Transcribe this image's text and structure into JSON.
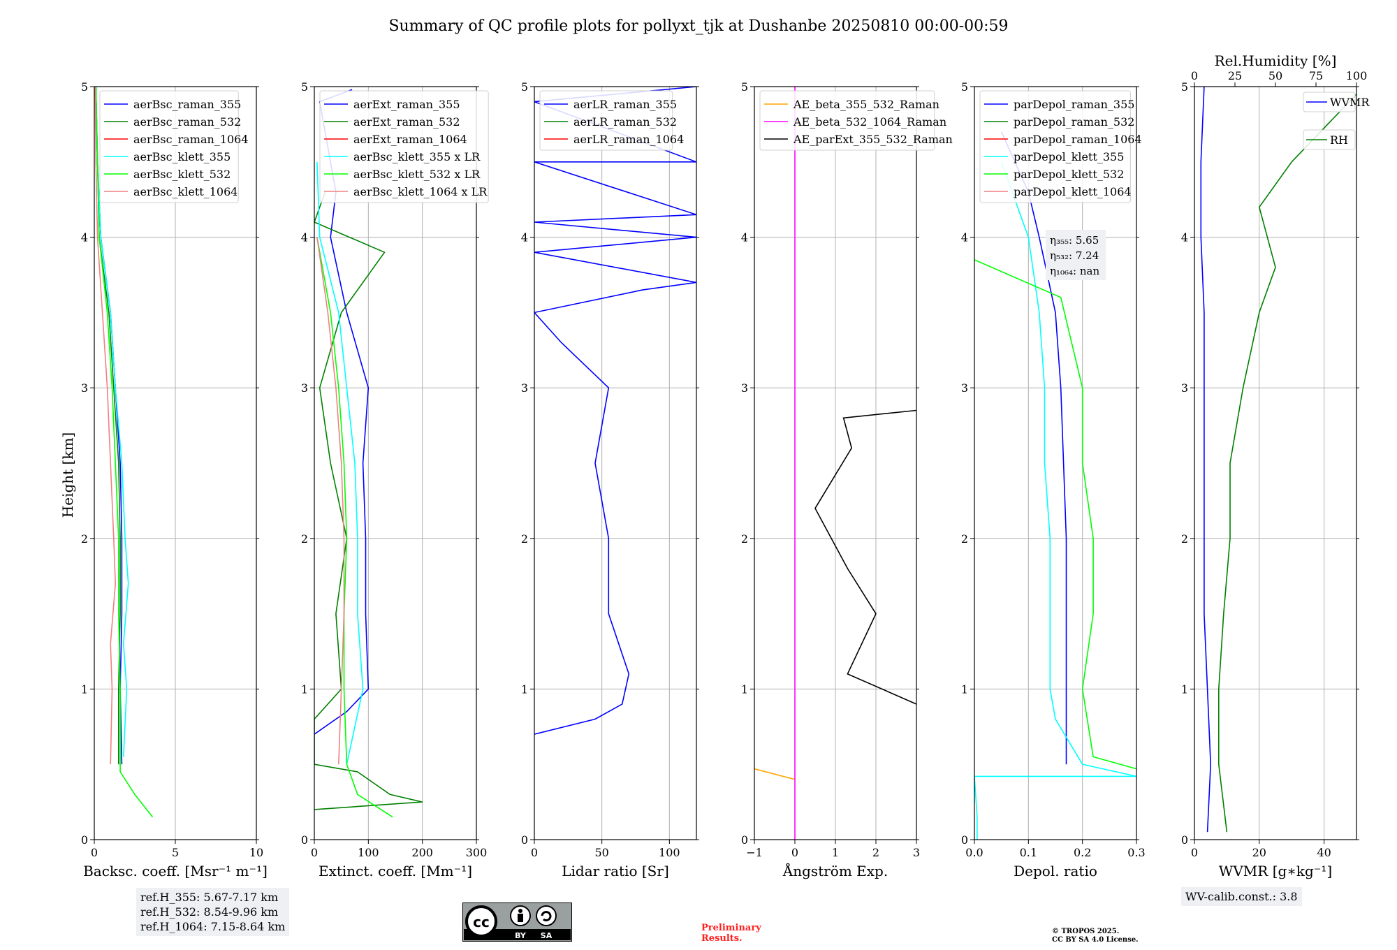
{
  "title": "Summary of QC profile plots for pollyxt_tjk at Dushanbe 20250810 00:00-00:59",
  "ylabel": "Height [km]",
  "colors": {
    "blue": "#0000ff",
    "green": "#008000",
    "red": "#ff0000",
    "cyan": "#00ffff",
    "lime": "#00ff00",
    "salmon": "#f08080",
    "orange": "#ffa500",
    "magenta": "#ff00ff",
    "black": "#000000"
  },
  "chart_data": [
    {
      "type": "line",
      "xlabel": "Backsc. coeff. [Msr$^{-1}$ m$^{-1}$]",
      "xlabel_text": "Backsc. coeff. [Msr⁻¹ m⁻¹]",
      "xlim": [
        0,
        10
      ],
      "ylim": [
        0,
        5
      ],
      "xticks": [
        0,
        5,
        10
      ],
      "yticks": [
        0,
        1,
        2,
        3,
        4,
        5
      ],
      "grid": true,
      "legend": "top-left",
      "series": [
        {
          "name": "aerBsc_raman_355",
          "color": "#0000ff",
          "points": [
            [
              1.7,
              0.5
            ],
            [
              1.6,
              1.0
            ],
            [
              1.7,
              1.5
            ],
            [
              1.7,
              2.0
            ],
            [
              1.6,
              2.5
            ],
            [
              1.3,
              3.0
            ],
            [
              1.0,
              3.5
            ],
            [
              0.4,
              4.0
            ],
            [
              0.2,
              4.5
            ],
            [
              0.1,
              5.0
            ]
          ]
        },
        {
          "name": "aerBsc_raman_532",
          "color": "#008000",
          "points": [
            [
              1.5,
              0.5
            ],
            [
              1.5,
              1.0
            ],
            [
              1.6,
              1.5
            ],
            [
              1.6,
              2.0
            ],
            [
              1.5,
              2.5
            ],
            [
              1.2,
              3.0
            ],
            [
              0.9,
              3.5
            ],
            [
              0.3,
              4.0
            ],
            [
              0.2,
              4.5
            ],
            [
              0.1,
              5.0
            ]
          ]
        },
        {
          "name": "aerBsc_raman_1064",
          "color": "#ff0000",
          "points": []
        },
        {
          "name": "aerBsc_klett_355",
          "color": "#00ffff",
          "points": [
            [
              1.8,
              0.55
            ],
            [
              2.0,
              1.0
            ],
            [
              1.8,
              1.3
            ],
            [
              2.1,
              1.7
            ],
            [
              1.9,
              2.0
            ],
            [
              1.7,
              2.5
            ],
            [
              1.3,
              3.0
            ],
            [
              1.0,
              3.5
            ],
            [
              0.4,
              4.0
            ],
            [
              0.2,
              4.5
            ],
            [
              0.1,
              5.0
            ]
          ]
        },
        {
          "name": "aerBsc_klett_532",
          "color": "#00ff00",
          "points": [
            [
              3.6,
              0.15
            ],
            [
              2.5,
              0.3
            ],
            [
              1.6,
              0.45
            ],
            [
              1.6,
              1.0
            ],
            [
              1.5,
              1.5
            ],
            [
              1.5,
              2.0
            ],
            [
              1.3,
              2.5
            ],
            [
              1.1,
              3.0
            ],
            [
              0.8,
              3.5
            ],
            [
              0.3,
              4.0
            ],
            [
              0.2,
              4.5
            ],
            [
              0.1,
              5.0
            ]
          ]
        },
        {
          "name": "aerBsc_klett_1064",
          "color": "#f08080",
          "points": [
            [
              1.0,
              0.5
            ],
            [
              1.1,
              1.0
            ],
            [
              1.0,
              1.3
            ],
            [
              1.3,
              1.7
            ],
            [
              1.2,
              2.0
            ],
            [
              1.0,
              2.5
            ],
            [
              0.8,
              3.0
            ],
            [
              0.5,
              3.5
            ],
            [
              0.2,
              4.0
            ],
            [
              0.1,
              4.5
            ],
            [
              0.05,
              5.0
            ]
          ]
        }
      ]
    },
    {
      "type": "line",
      "xlabel": "Extinct. coeff. [Mm$^{-1}$]",
      "xlabel_text": "Extinct. coeff. [Mm⁻¹]",
      "xlim": [
        0,
        300
      ],
      "ylim": [
        0,
        5
      ],
      "xticks": [
        0,
        100,
        200,
        300
      ],
      "yticks": [
        0,
        1,
        2,
        3,
        4,
        5
      ],
      "grid": true,
      "legend": "top-left",
      "series": [
        {
          "name": "aerExt_raman_355",
          "color": "#0000ff",
          "points": [
            [
              0,
              0.7
            ],
            [
              60,
              0.85
            ],
            [
              100,
              1.0
            ],
            [
              95,
              1.5
            ],
            [
              95,
              2.0
            ],
            [
              90,
              2.5
            ],
            [
              100,
              3.0
            ],
            [
              60,
              3.5
            ],
            [
              30,
              4.0
            ],
            [
              40,
              4.3
            ],
            [
              10,
              4.9
            ],
            [
              70,
              4.98
            ]
          ]
        },
        {
          "name": "aerExt_raman_532",
          "color": "#008000",
          "points": [
            [
              0,
              0.2
            ],
            [
              200,
              0.25
            ],
            [
              140,
              0.3
            ],
            [
              80,
              0.45
            ],
            [
              0,
              0.5
            ],
            [
              0,
              0.8
            ],
            [
              50,
              1.0
            ],
            [
              40,
              1.5
            ],
            [
              60,
              2.0
            ],
            [
              30,
              2.5
            ],
            [
              10,
              3.0
            ],
            [
              50,
              3.5
            ],
            [
              130,
              3.9
            ],
            [
              0,
              4.1
            ],
            [
              20,
              4.3
            ]
          ]
        },
        {
          "name": "aerExt_raman_1064",
          "color": "#ff0000",
          "points": []
        },
        {
          "name": "aerBsc_klett_355 x LR",
          "color": "#00ffff",
          "points": [
            [
              60,
              0.5
            ],
            [
              90,
              1.0
            ],
            [
              80,
              1.5
            ],
            [
              80,
              2.0
            ],
            [
              75,
              2.5
            ],
            [
              60,
              3.0
            ],
            [
              45,
              3.5
            ],
            [
              10,
              4.0
            ],
            [
              5,
              4.5
            ]
          ]
        },
        {
          "name": "aerBsc_klett_532 x LR",
          "color": "#00ff00",
          "points": [
            [
              145,
              0.15
            ],
            [
              80,
              0.3
            ],
            [
              60,
              0.5
            ],
            [
              55,
              1.0
            ],
            [
              55,
              1.5
            ],
            [
              60,
              2.0
            ],
            [
              55,
              2.5
            ],
            [
              45,
              3.0
            ],
            [
              30,
              3.5
            ],
            [
              5,
              4.0
            ]
          ]
        },
        {
          "name": "aerBsc_klett_1064 x LR",
          "color": "#f08080",
          "points": [
            [
              45,
              0.5
            ],
            [
              50,
              1.0
            ],
            [
              55,
              1.5
            ],
            [
              55,
              2.0
            ],
            [
              50,
              2.5
            ],
            [
              40,
              3.0
            ],
            [
              25,
              3.5
            ],
            [
              5,
              4.0
            ]
          ]
        }
      ]
    },
    {
      "type": "line",
      "xlabel": "Lidar ratio [Sr]",
      "xlabel_text": "Lidar ratio [Sr]",
      "xlim": [
        0,
        120
      ],
      "ylim": [
        0,
        5
      ],
      "xticks": [
        0,
        50,
        100
      ],
      "yticks": [
        0,
        1,
        2,
        3,
        4,
        5
      ],
      "grid": true,
      "legend": "top-left",
      "series": [
        {
          "name": "aerLR_raman_355",
          "color": "#0000ff",
          "points": [
            [
              0,
              0.7
            ],
            [
              45,
              0.8
            ],
            [
              65,
              0.9
            ],
            [
              70,
              1.1
            ],
            [
              55,
              1.5
            ],
            [
              55,
              2.0
            ],
            [
              45,
              2.5
            ],
            [
              55,
              3.0
            ],
            [
              20,
              3.3
            ],
            [
              0,
              3.5
            ],
            [
              80,
              3.65
            ],
            [
              120,
              3.7
            ],
            [
              0,
              3.9
            ],
            [
              120,
              4.0
            ],
            [
              0,
              4.1
            ],
            [
              120,
              4.15
            ],
            [
              0,
              4.5
            ],
            [
              120,
              4.5
            ],
            [
              0,
              4.9
            ],
            [
              120,
              5.0
            ]
          ]
        },
        {
          "name": "aerLR_raman_532",
          "color": "#008000",
          "points": []
        },
        {
          "name": "aerLR_raman_1064",
          "color": "#ff0000",
          "points": []
        }
      ]
    },
    {
      "type": "line",
      "xlabel": "Ångström Exp.",
      "xlabel_text": "Ångström Exp.",
      "xlim": [
        -1,
        3
      ],
      "ylim": [
        0,
        5
      ],
      "xticks": [
        -1,
        0,
        1,
        2,
        3
      ],
      "yticks": [
        0,
        1,
        2,
        3,
        4,
        5
      ],
      "grid": true,
      "legend": "top-left",
      "series": [
        {
          "name": "AE_beta_355_532_Raman",
          "color": "#ffa500",
          "points": [
            [
              -1,
              0.47
            ],
            [
              0,
              0.4
            ]
          ]
        },
        {
          "name": "AE_beta_532_1064_Raman",
          "color": "#ff00ff",
          "points": [
            [
              0,
              0
            ],
            [
              0,
              5
            ]
          ]
        },
        {
          "name": "AE_parExt_355_532_Raman",
          "color": "#000000",
          "points": [
            [
              3,
              0.9
            ],
            [
              1.3,
              1.1
            ],
            [
              2.0,
              1.5
            ],
            [
              1.3,
              1.8
            ],
            [
              0.5,
              2.2
            ],
            [
              1.4,
              2.6
            ],
            [
              1.2,
              2.8
            ],
            [
              3,
              2.85
            ]
          ]
        }
      ]
    },
    {
      "type": "line",
      "xlabel": "Depol. ratio",
      "xlabel_text": "Depol. ratio",
      "xlim": [
        0,
        0.3
      ],
      "ylim": [
        0,
        5
      ],
      "xticks": [
        0,
        0.1,
        0.2,
        0.3
      ],
      "xticklabels": [
        "0.0",
        "0.1",
        "0.2",
        "0.3"
      ],
      "yticks": [
        0,
        1,
        2,
        3,
        4,
        5
      ],
      "grid": true,
      "legend": "top-left",
      "annotation": [
        "η₃₅₅: 5.65",
        "η₅₃₂: 7.24",
        "η₁₀₆₄: nan"
      ],
      "series": [
        {
          "name": "parDepol_raman_355",
          "color": "#0000ff",
          "points": [
            [
              0.17,
              0.5
            ],
            [
              0.17,
              1.0
            ],
            [
              0.17,
              1.5
            ],
            [
              0.17,
              2.0
            ],
            [
              0.165,
              2.5
            ],
            [
              0.16,
              3.0
            ],
            [
              0.15,
              3.5
            ],
            [
              0.12,
              4.0
            ],
            [
              0.1,
              4.3
            ],
            [
              0.05,
              4.7
            ]
          ]
        },
        {
          "name": "parDepol_raman_532",
          "color": "#008000",
          "points": []
        },
        {
          "name": "parDepol_raman_1064",
          "color": "#ff0000",
          "points": []
        },
        {
          "name": "parDepol_klett_355",
          "color": "#00ffff",
          "points": [
            [
              0.005,
              0
            ],
            [
              0.005,
              0.15
            ],
            [
              0.0,
              0.42
            ],
            [
              0.3,
              0.42
            ],
            [
              0.2,
              0.5
            ],
            [
              0.15,
              0.8
            ],
            [
              0.14,
              1.0
            ],
            [
              0.14,
              1.5
            ],
            [
              0.14,
              2.0
            ],
            [
              0.13,
              2.5
            ],
            [
              0.13,
              3.0
            ],
            [
              0.12,
              3.5
            ],
            [
              0.1,
              4.0
            ],
            [
              0.05,
              4.5
            ]
          ]
        },
        {
          "name": "parDepol_klett_532",
          "color": "#00ff00",
          "points": [
            [
              0.3,
              0.47
            ],
            [
              0.22,
              0.55
            ],
            [
              0.2,
              1.0
            ],
            [
              0.22,
              1.5
            ],
            [
              0.22,
              2.0
            ],
            [
              0.2,
              2.5
            ],
            [
              0.2,
              3.0
            ],
            [
              0.16,
              3.6
            ],
            [
              0.0,
              3.85
            ]
          ]
        },
        {
          "name": "parDepol_klett_1064",
          "color": "#f08080",
          "points": []
        }
      ]
    },
    {
      "type": "line",
      "xlabel": "WVMR [$g*kg^{-1}$]",
      "xlabel_text": "WVMR [g∗kg⁻¹]",
      "xlim": [
        0,
        50
      ],
      "ylim": [
        0,
        5
      ],
      "xticks": [
        0,
        20,
        40
      ],
      "yticks": [
        0,
        1,
        2,
        3,
        4,
        5
      ],
      "grid": true,
      "top_axis": {
        "label": "Rel.Humidity [%]",
        "xlim": [
          0,
          100
        ],
        "xticks": [
          0,
          25,
          50,
          75,
          100
        ]
      },
      "legend": "top-right",
      "series": [
        {
          "name": "WVMR",
          "color": "#0000ff",
          "points": [
            [
              4,
              0.05
            ],
            [
              5,
              0.5
            ],
            [
              4,
              1.0
            ],
            [
              3,
              1.5
            ],
            [
              3,
              2.0
            ],
            [
              3,
              2.5
            ],
            [
              3,
              3.0
            ],
            [
              3,
              3.5
            ],
            [
              2,
              4.0
            ],
            [
              2,
              4.5
            ],
            [
              3,
              5.0
            ]
          ]
        },
        {
          "name": "RH",
          "color": "#008000",
          "axis": "top",
          "points": [
            [
              20,
              0.05
            ],
            [
              15,
              0.5
            ],
            [
              15,
              1.0
            ],
            [
              18,
              1.5
            ],
            [
              22,
              2.0
            ],
            [
              22,
              2.5
            ],
            [
              30,
              3.0
            ],
            [
              40,
              3.5
            ],
            [
              50,
              3.8
            ],
            [
              40,
              4.2
            ],
            [
              60,
              4.5
            ],
            [
              100,
              4.95
            ]
          ]
        }
      ]
    }
  ],
  "refbox": [
    "ref.H_355: 5.67-7.17 km",
    "ref.H_532: 8.54-9.96 km",
    "ref.H_1064: 7.15-8.64 km"
  ],
  "wvbox": "WV-calib.const.: 3.8",
  "prelim": [
    "Preliminary",
    "Results."
  ],
  "copyright": [
    "© TROPOS 2025.",
    "CC BY SA 4.0 License."
  ],
  "cc": {
    "by": "BY",
    "sa": "SA"
  }
}
